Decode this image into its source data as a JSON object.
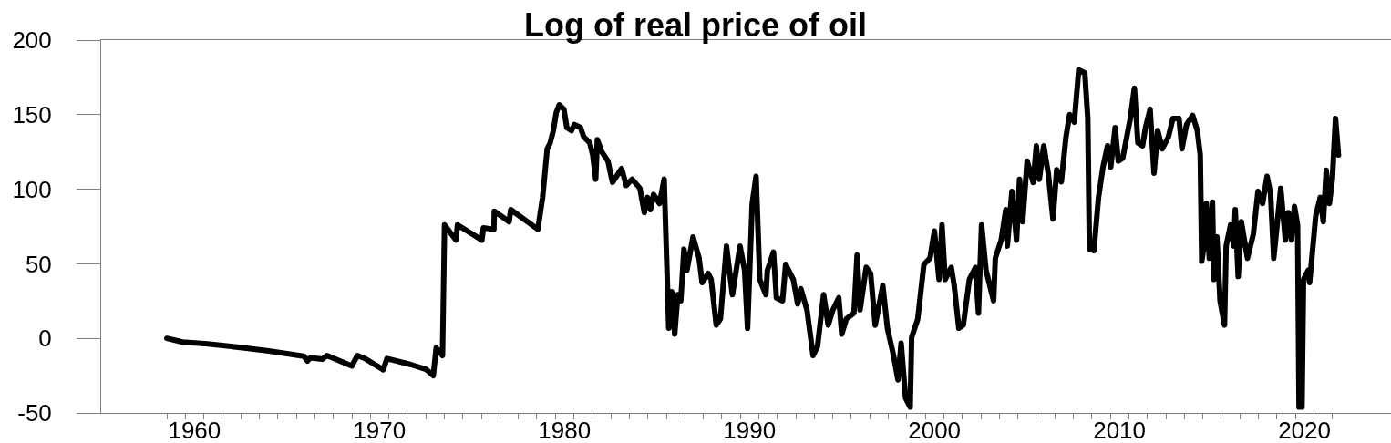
{
  "chart_data": {
    "type": "line",
    "title": "Log of real price of oil",
    "line_style": "solid",
    "xlim": [
      1955.45,
      2025.17
    ],
    "ylim": [
      -50,
      200
    ],
    "yticks": [
      -50,
      0,
      50,
      100,
      150,
      200
    ],
    "xticks": [
      {
        "value": 1959,
        "label": null
      },
      1960,
      {
        "value": 1961,
        "label": null
      },
      {
        "value": 1962,
        "label": null
      },
      {
        "value": 1963,
        "label": null
      },
      {
        "value": 1964,
        "label": null
      },
      {
        "value": 1965,
        "label": null
      },
      {
        "value": 1966,
        "label": null
      },
      {
        "value": 1967,
        "label": null
      },
      {
        "value": 1968,
        "label": null
      },
      {
        "value": 1969,
        "label": null
      },
      1970,
      {
        "value": 1971,
        "label": null
      },
      {
        "value": 1972,
        "label": null
      },
      {
        "value": 1973,
        "label": null
      },
      {
        "value": 1974,
        "label": null
      },
      {
        "value": 1975,
        "label": null
      },
      {
        "value": 1976,
        "label": null
      },
      {
        "value": 1977,
        "label": null
      },
      {
        "value": 1978,
        "label": null
      },
      {
        "value": 1979,
        "label": null
      },
      1980,
      {
        "value": 1981,
        "label": null
      },
      {
        "value": 1982,
        "label": null
      },
      {
        "value": 1983,
        "label": null
      },
      {
        "value": 1984,
        "label": null
      },
      {
        "value": 1985,
        "label": null
      },
      {
        "value": 1986,
        "label": null
      },
      {
        "value": 1987,
        "label": null
      },
      {
        "value": 1988,
        "label": null
      },
      {
        "value": 1989,
        "label": null
      },
      1990,
      {
        "value": 1991,
        "label": null
      },
      {
        "value": 1992,
        "label": null
      },
      {
        "value": 1993,
        "label": null
      },
      {
        "value": 1994,
        "label": null
      },
      {
        "value": 1995,
        "label": null
      },
      {
        "value": 1996,
        "label": null
      },
      {
        "value": 1997,
        "label": null
      },
      {
        "value": 1998,
        "label": null
      },
      {
        "value": 1999,
        "label": null
      },
      2000,
      {
        "value": 2001,
        "label": null
      },
      {
        "value": 2002,
        "label": null
      },
      {
        "value": 2003,
        "label": null
      },
      {
        "value": 2004,
        "label": null
      },
      {
        "value": 2005,
        "label": null
      },
      {
        "value": 2006,
        "label": null
      },
      {
        "value": 2007,
        "label": null
      },
      {
        "value": 2008,
        "label": null
      },
      {
        "value": 2009,
        "label": null
      },
      2010,
      {
        "value": 2011,
        "label": null
      },
      {
        "value": 2012,
        "label": null
      },
      {
        "value": 2013,
        "label": null
      },
      {
        "value": 2014,
        "label": null
      },
      {
        "value": 2015,
        "label": null
      },
      {
        "value": 2016,
        "label": null
      },
      {
        "value": 2017,
        "label": null
      },
      {
        "value": 2018,
        "label": null
      },
      {
        "value": 2019,
        "label": null
      },
      2020,
      {
        "value": 2021,
        "label": null
      },
      {
        "value": 2022,
        "label": null
      }
    ],
    "series": [
      {
        "color": "#000000",
        "x": [
          1959.0,
          1959.85,
          1961.2,
          1963.2,
          1964.5,
          1966.4,
          1966.6,
          1966.75,
          1967.4,
          1967.65,
          1969.0,
          1969.3,
          1969.7,
          1970.7,
          1970.9,
          1972.2,
          1973.0,
          1973.4,
          1973.56,
          1973.9,
          1974.01,
          1974.63,
          1974.71,
          1976.03,
          1976.11,
          1976.68,
          1976.7,
          1977.5,
          1977.59,
          1979.06,
          1979.15,
          1979.31,
          1979.56,
          1979.72,
          1979.89,
          1980.05,
          1980.21,
          1980.46,
          1980.62,
          1980.87,
          1981.03,
          1981.36,
          1981.53,
          1981.86,
          1982.02,
          1982.18,
          1982.27,
          1982.51,
          1982.84,
          1983.09,
          1983.58,
          1983.83,
          1984.15,
          1984.57,
          1984.81,
          1984.98,
          1985.14,
          1985.31,
          1985.63,
          1985.88,
          1986.13,
          1986.29,
          1986.45,
          1986.62,
          1986.78,
          1986.95,
          1987.11,
          1987.44,
          1987.77,
          1987.93,
          1988.26,
          1988.42,
          1988.7,
          1988.92,
          1989.25,
          1989.57,
          1989.98,
          1990.23,
          1990.39,
          1990.64,
          1990.85,
          1991.05,
          1991.38,
          1991.46,
          1991.79,
          1991.95,
          1992.28,
          1992.45,
          1992.86,
          1993.1,
          1993.27,
          1993.6,
          1993.93,
          1994.17,
          1994.5,
          1994.75,
          1995.0,
          1995.32,
          1995.48,
          1995.73,
          1996.14,
          1996.31,
          1996.47,
          1996.8,
          1997.04,
          1997.29,
          1997.7,
          1997.95,
          1998.28,
          1998.52,
          1998.69,
          1998.93,
          1999.18,
          1999.26,
          1999.59,
          1999.92,
          2000.25,
          2000.49,
          2000.74,
          2000.9,
          2001.07,
          2001.4,
          2001.56,
          2001.81,
          2002.05,
          2002.38,
          2002.71,
          2002.87,
          2003.04,
          2003.28,
          2003.69,
          2003.78,
          2004.1,
          2004.35,
          2004.43,
          2004.68,
          2004.93,
          2005.09,
          2005.26,
          2005.5,
          2005.83,
          2006.0,
          2006.16,
          2006.4,
          2006.65,
          2006.9,
          2007.1,
          2007.35,
          2007.6,
          2007.8,
          2008.05,
          2008.29,
          2008.62,
          2008.78,
          2008.87,
          2009.11,
          2009.36,
          2009.6,
          2009.85,
          2010.02,
          2010.26,
          2010.43,
          2010.67,
          2010.92,
          2011.08,
          2011.3,
          2011.49,
          2011.74,
          2011.9,
          2012.15,
          2012.36,
          2012.56,
          2012.81,
          2013.14,
          2013.38,
          2013.71,
          2013.87,
          2014.12,
          2014.45,
          2014.7,
          2014.86,
          2014.94,
          2015.11,
          2015.19,
          2015.35,
          2015.52,
          2015.6,
          2015.76,
          2015.93,
          2016.17,
          2016.26,
          2016.5,
          2016.67,
          2016.75,
          2016.91,
          2017.08,
          2017.41,
          2017.73,
          2017.98,
          2018.23,
          2018.47,
          2018.66,
          2018.83,
          2019.21,
          2019.46,
          2019.62,
          2019.79,
          2019.95,
          2020.12,
          2020.2,
          2020.36,
          2020.44,
          2020.69,
          2020.77,
          2021.1,
          2021.35,
          2021.51,
          2021.67,
          2021.84,
          2022.0,
          2022.17,
          2022.33
        ],
        "values": [
          0,
          -2.5,
          -3.7,
          -6.4,
          -8.4,
          -11.9,
          -15.2,
          -13,
          -14,
          -11.5,
          -18.5,
          -11.5,
          -13.5,
          -21,
          -13.5,
          -17.6,
          -20.7,
          -25,
          -6.4,
          -11.5,
          76.1,
          65.9,
          76.1,
          65.9,
          74.1,
          73.1,
          85.3,
          78.2,
          86.3,
          73.1,
          81.2,
          94.5,
          127.1,
          131.1,
          139.3,
          151.5,
          156.6,
          153.6,
          141.3,
          139.3,
          143.4,
          141.3,
          135.2,
          131.1,
          123.0,
          106.7,
          133.2,
          125.0,
          118.9,
          104.6,
          113.8,
          102.6,
          106.7,
          100.6,
          84.3,
          94.5,
          86.3,
          96.5,
          90.4,
          106.7,
          6.9,
          31.3,
          2.8,
          29.3,
          25.2,
          59.8,
          45.6,
          68.0,
          53.7,
          37.4,
          43.5,
          39.5,
          8.9,
          13.0,
          61.9,
          29.3,
          61.9,
          45.6,
          6.8,
          90.4,
          108.7,
          39.5,
          29.3,
          45.6,
          57.8,
          27.2,
          25.2,
          49.6,
          39.5,
          23.1,
          33.3,
          19.1,
          -11.5,
          -5.4,
          29.3,
          8.9,
          19.1,
          27.2,
          2.8,
          13.0,
          17.0,
          55.8,
          19.1,
          47.6,
          43.5,
          8.9,
          35.4,
          6.8,
          -11.5,
          -27.8,
          -3.3,
          -40.0,
          -46.1,
          0.7,
          13.0,
          49.6,
          53.7,
          72.0,
          39.5,
          76.1,
          39.5,
          47.6,
          35.4,
          6.8,
          8.9,
          39.5,
          47.6,
          17.0,
          76.1,
          45.6,
          25.2,
          53.7,
          65.9,
          86.3,
          61.9,
          98.5,
          65.9,
          106.7,
          78.2,
          118.9,
          104.6,
          129.1,
          106.7,
          129.1,
          110,
          80,
          113,
          105,
          135,
          150,
          145,
          180.0,
          178.0,
          147.4,
          59.8,
          58.8,
          94.5,
          114.8,
          129.1,
          114.8,
          141.3,
          118.9,
          120.9,
          137.2,
          147.4,
          167.8,
          131.1,
          129.1,
          141.3,
          153.6,
          110.8,
          139.3,
          127.1,
          135.2,
          147.4,
          147.4,
          127.1,
          143.4,
          149.5,
          139.3,
          123.0,
          51.7,
          65.9,
          90.4,
          53.7,
          91.4,
          39.5,
          68.0,
          25.2,
          8.9,
          61.9,
          76.1,
          61.9,
          86.3,
          41.5,
          78.2,
          53.7,
          70.0,
          98.5,
          90.4,
          108.7,
          97,
          53.7,
          100.6,
          65.9,
          84.3,
          65.9,
          88.4,
          76.1,
          -46.1,
          -46.1,
          39.5,
          45.6,
          37.4,
          82.2,
          94.5,
          78.2,
          112.8,
          90.4,
          106.7,
          147.4,
          123.0
        ]
      }
    ]
  }
}
